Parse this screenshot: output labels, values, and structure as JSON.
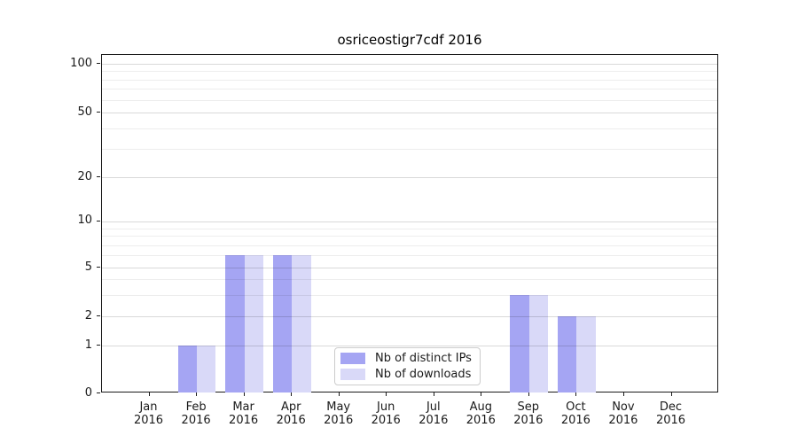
{
  "chart_data": {
    "type": "bar",
    "title": "osriceostigr7cdf 2016",
    "categories": [
      "Jan 2016",
      "Feb 2016",
      "Mar 2016",
      "Apr 2016",
      "May 2016",
      "Jun 2016",
      "Jul 2016",
      "Aug 2016",
      "Sep 2016",
      "Oct 2016",
      "Nov 2016",
      "Dec 2016"
    ],
    "series": [
      {
        "name": "Nb of distinct IPs",
        "color": "#a5a5f3",
        "values": [
          0,
          1,
          6,
          6,
          0,
          0,
          0,
          0,
          3,
          2,
          0,
          0
        ]
      },
      {
        "name": "Nb of downloads",
        "color": "#d9d9f8",
        "values": [
          0,
          1,
          6,
          6,
          0,
          0,
          0,
          0,
          3,
          2,
          0,
          0
        ]
      }
    ],
    "xlabel": "",
    "ylabel": "",
    "yaxis": {
      "scale": "symlog",
      "range": [
        0,
        110
      ],
      "ticks": [
        0,
        1,
        2,
        5,
        10,
        20,
        50,
        100
      ],
      "minor_ticks": [
        3,
        4,
        6,
        7,
        8,
        9,
        30,
        40,
        60,
        70,
        80,
        90
      ]
    },
    "grid": "horizontal, drawn over bars",
    "legend_position": "lower center"
  },
  "colors": {
    "bar_distinct_ips": "#a5a5f3",
    "bar_downloads": "#d9d9f8",
    "grid_major": "rgba(0,0,0,0.15)",
    "grid_minor": "rgba(0,0,0,0.07)",
    "spine": "#1a1a1a",
    "legend_border": "#cccccc",
    "background": "#ffffff"
  }
}
